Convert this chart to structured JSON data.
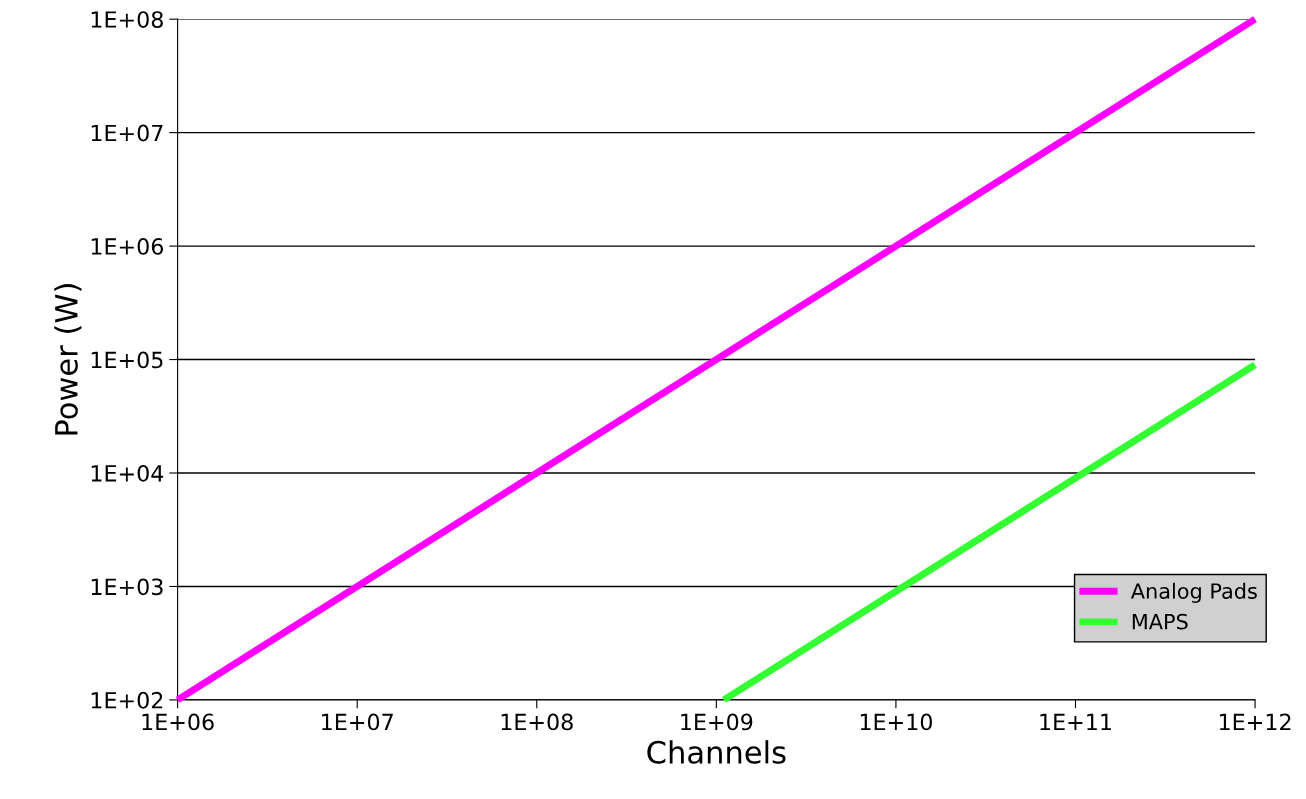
{
  "chart_data": {
    "type": "line",
    "xlabel": "Channels",
    "ylabel": "Power (W)",
    "log": "xy",
    "grid": "y",
    "legend": "bottom right",
    "marker": "none",
    "line_style": "solid",
    "xlim": [
      1000000,
      1000000000000
    ],
    "ylim": [
      100,
      100000000
    ],
    "xticks": [
      {
        "value": 1000000,
        "label": "1E+06"
      },
      {
        "value": 10000000,
        "label": "1E+07"
      },
      {
        "value": 100000000,
        "label": "1E+08"
      },
      {
        "value": 1000000000,
        "label": "1E+09"
      },
      {
        "value": 10000000000,
        "label": "1E+10"
      },
      {
        "value": 100000000000,
        "label": "1E+11"
      },
      {
        "value": 1000000000000,
        "label": "1E+12"
      }
    ],
    "yticks": [
      {
        "value": 100,
        "label": "1E+02"
      },
      {
        "value": 1000,
        "label": "1E+03"
      },
      {
        "value": 10000,
        "label": "1E+04"
      },
      {
        "value": 100000,
        "label": "1E+05"
      },
      {
        "value": 1000000,
        "label": "1E+06"
      },
      {
        "value": 10000000,
        "label": "1E+07"
      },
      {
        "value": 100000000,
        "label": "1E+08"
      }
    ],
    "series": [
      {
        "name": "Analog Pads",
        "color": "#ff00ff",
        "x": [
          1000000,
          1000000000000
        ],
        "values": [
          100,
          100000000
        ]
      },
      {
        "name": "MAPS",
        "color": "#33ff33",
        "x": [
          1100000000,
          1000000000000
        ],
        "values": [
          100,
          90000
        ]
      }
    ]
  }
}
